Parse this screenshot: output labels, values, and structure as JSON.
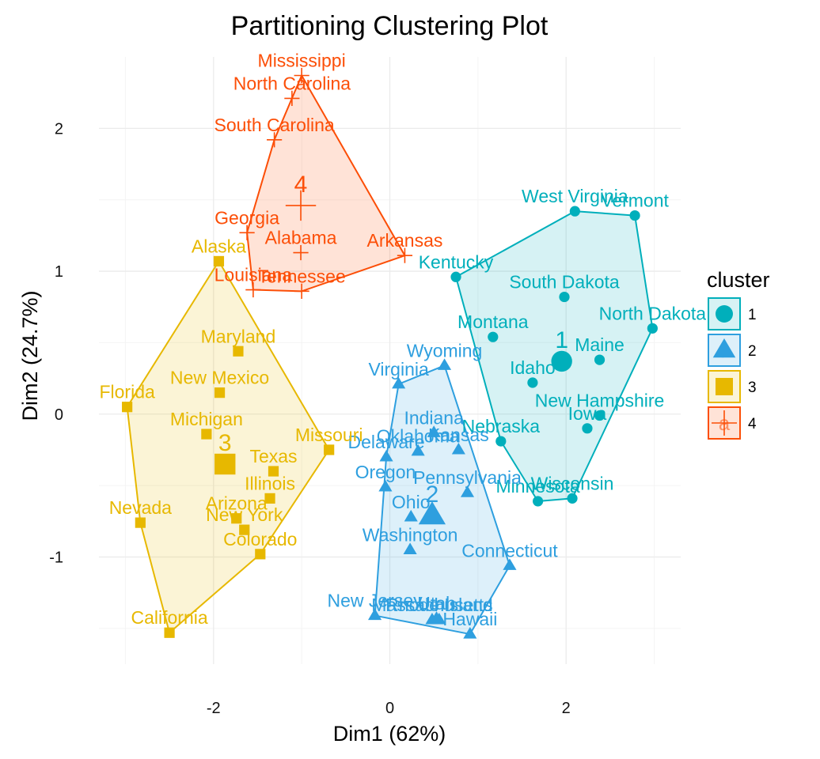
{
  "chart_data": {
    "type": "scatter",
    "title": "Partitioning Clustering Plot",
    "xlabel": "Dim1 (62%)",
    "ylabel": "Dim2 (24.7%)",
    "xlim": [
      -3.3,
      3.3
    ],
    "ylim": [
      -1.75,
      2.5
    ],
    "x_ticks": [
      -2,
      0,
      2
    ],
    "y_ticks": [
      -1,
      0,
      1,
      2
    ],
    "x_tick_labels": [
      "-2",
      "0",
      "2"
    ],
    "y_tick_labels": [
      "-1",
      "0",
      "1",
      "2"
    ],
    "grid": true,
    "legend": {
      "title": "cluster",
      "position": "right",
      "labels": [
        "1",
        "2",
        "3",
        "4"
      ],
      "key_letter": "a"
    },
    "clusters": [
      {
        "id": "1",
        "color": "#00AFBB",
        "shape": "circle",
        "center": {
          "x": 1.95,
          "y": 0.37
        },
        "points": [
          {
            "label": "West Virginia",
            "x": 2.1,
            "y": 1.42
          },
          {
            "label": "Vermont",
            "x": 2.78,
            "y": 1.39
          },
          {
            "label": "Kentucky",
            "x": 0.75,
            "y": 0.96
          },
          {
            "label": "South Dakota",
            "x": 1.98,
            "y": 0.82
          },
          {
            "label": "North Dakota",
            "x": 2.98,
            "y": 0.6
          },
          {
            "label": "Montana",
            "x": 1.17,
            "y": 0.54
          },
          {
            "label": "Maine",
            "x": 2.38,
            "y": 0.38
          },
          {
            "label": "Idaho",
            "x": 1.62,
            "y": 0.22
          },
          {
            "label": "New Hampshire",
            "x": 2.38,
            "y": -0.01
          },
          {
            "label": "Iowa",
            "x": 2.24,
            "y": -0.1
          },
          {
            "label": "Nebraska",
            "x": 1.26,
            "y": -0.19
          },
          {
            "label": "Wisconsin",
            "x": 2.07,
            "y": -0.59
          },
          {
            "label": "Minnesota",
            "x": 1.68,
            "y": -0.61
          }
        ]
      },
      {
        "id": "2",
        "color": "#2E9FDF",
        "shape": "triangle",
        "center": {
          "x": 0.48,
          "y": -0.71
        },
        "points": [
          {
            "label": "Wyoming",
            "x": 0.62,
            "y": 0.34
          },
          {
            "label": "Virginia",
            "x": 0.1,
            "y": 0.21
          },
          {
            "label": "Indiana",
            "x": 0.5,
            "y": -0.13
          },
          {
            "label": "Kansas",
            "x": 0.78,
            "y": -0.25
          },
          {
            "label": "Oklahoma",
            "x": 0.32,
            "y": -0.26
          },
          {
            "label": "Delaware",
            "x": -0.04,
            "y": -0.3
          },
          {
            "label": "Pennsylvania",
            "x": 0.88,
            "y": -0.55
          },
          {
            "label": "Oregon",
            "x": -0.05,
            "y": -0.51
          },
          {
            "label": "Ohio",
            "x": 0.24,
            "y": -0.72
          },
          {
            "label": "Washington",
            "x": 0.23,
            "y": -0.95
          },
          {
            "label": "Connecticut",
            "x": 1.36,
            "y": -1.06
          },
          {
            "label": "New Jersey",
            "x": -0.17,
            "y": -1.41
          },
          {
            "label": "Massachusetts",
            "x": 0.48,
            "y": -1.44
          },
          {
            "label": "Rhode Island",
            "x": 0.56,
            "y": -1.44
          },
          {
            "label": "Utah",
            "x": 0.53,
            "y": -1.43
          },
          {
            "label": "Hawaii",
            "x": 0.91,
            "y": -1.54
          }
        ]
      },
      {
        "id": "3",
        "color": "#E7B800",
        "shape": "square",
        "center": {
          "x": -1.87,
          "y": -0.35
        },
        "points": [
          {
            "label": "Alaska",
            "x": -1.94,
            "y": 1.07
          },
          {
            "label": "Maryland",
            "x": -1.72,
            "y": 0.44
          },
          {
            "label": "New Mexico",
            "x": -1.93,
            "y": 0.15
          },
          {
            "label": "Florida",
            "x": -2.98,
            "y": 0.05
          },
          {
            "label": "Michigan",
            "x": -2.08,
            "y": -0.14
          },
          {
            "label": "Missouri",
            "x": -0.69,
            "y": -0.25
          },
          {
            "label": "Texas",
            "x": -1.32,
            "y": -0.4
          },
          {
            "label": "Illinois",
            "x": -1.36,
            "y": -0.59
          },
          {
            "label": "Arizona",
            "x": -1.74,
            "y": -0.73
          },
          {
            "label": "New York",
            "x": -1.65,
            "y": -0.81
          },
          {
            "label": "Colorado",
            "x": -1.47,
            "y": -0.98
          },
          {
            "label": "Nevada",
            "x": -2.83,
            "y": -0.76
          },
          {
            "label": "California",
            "x": -2.5,
            "y": -1.53
          }
        ]
      },
      {
        "id": "4",
        "color": "#FC4E07",
        "shape": "cross",
        "center": {
          "x": -1.01,
          "y": 1.46
        },
        "points": [
          {
            "label": "Mississippi",
            "x": -1.0,
            "y": 2.37
          },
          {
            "label": "North Carolina",
            "x": -1.11,
            "y": 2.21
          },
          {
            "label": "South Carolina",
            "x": -1.31,
            "y": 1.92
          },
          {
            "label": "Georgia",
            "x": -1.62,
            "y": 1.27
          },
          {
            "label": "Alabama",
            "x": -1.01,
            "y": 1.13
          },
          {
            "label": "Arkansas",
            "x": 0.17,
            "y": 1.11
          },
          {
            "label": "Louisiana",
            "x": -1.55,
            "y": 0.87
          },
          {
            "label": "Tennessee",
            "x": -1.0,
            "y": 0.86
          }
        ]
      }
    ]
  }
}
